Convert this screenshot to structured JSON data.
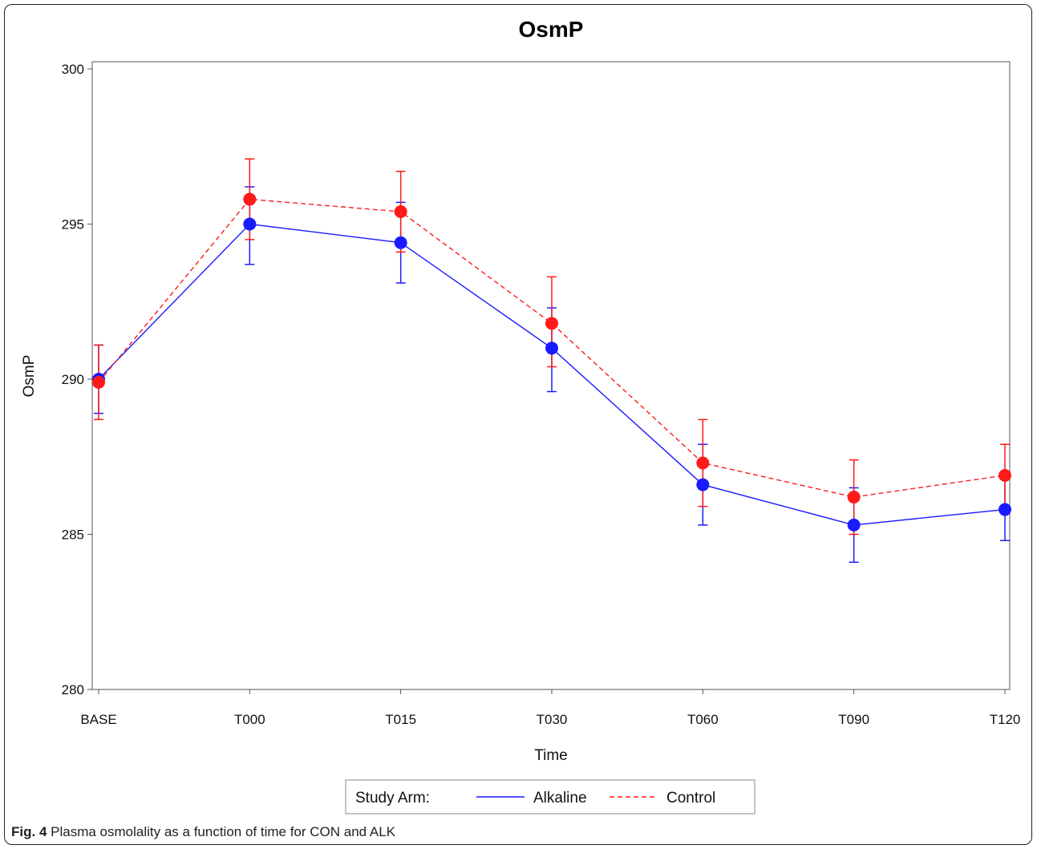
{
  "chart_data": {
    "type": "line",
    "title": "OsmP",
    "xlabel": "Time",
    "ylabel": "OsmP",
    "categories": [
      "BASE",
      "T000",
      "T015",
      "T030",
      "T060",
      "T090",
      "T120"
    ],
    "ylim": [
      280,
      300
    ],
    "yticks": [
      280,
      285,
      290,
      295,
      300
    ],
    "grid": false,
    "legend": {
      "title": "Study Arm:",
      "position": "bottom"
    },
    "series": [
      {
        "name": "Alkaline",
        "color": "#1a1aff",
        "line_style": "solid",
        "values": [
          290.0,
          295.0,
          294.4,
          291.0,
          286.6,
          285.3,
          285.8
        ],
        "error_low": [
          288.9,
          293.7,
          293.1,
          289.6,
          285.3,
          284.1,
          284.8
        ],
        "error_high": [
          291.1,
          296.2,
          295.7,
          292.3,
          287.9,
          286.5,
          286.9
        ]
      },
      {
        "name": "Control",
        "color": "#ff1a1a",
        "line_style": "dashed",
        "values": [
          289.9,
          295.8,
          295.4,
          291.8,
          287.3,
          286.2,
          286.9
        ],
        "error_low": [
          288.7,
          294.5,
          294.1,
          290.4,
          285.9,
          285.0,
          285.9
        ],
        "error_high": [
          291.1,
          297.1,
          296.7,
          293.3,
          288.7,
          287.4,
          287.9
        ]
      }
    ]
  },
  "caption": {
    "label": "Fig. 4",
    "text": " Plasma osmolality as a function of time for CON and ALK"
  }
}
